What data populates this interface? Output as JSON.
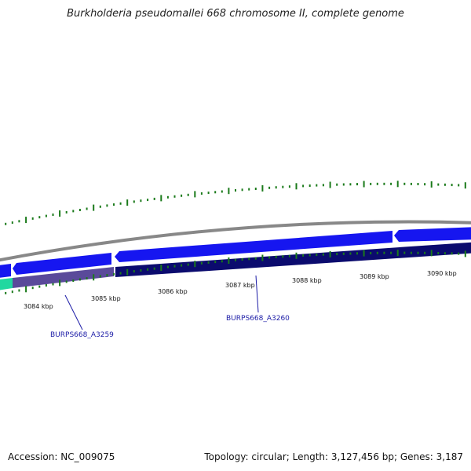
{
  "title": "Burkholderia pseudomallei 668 chromosome II, complete genome",
  "footer": {
    "accession": "Accession: NC_009075",
    "summary": "Topology: circular; Length: 3,127,456 bp; Genes: 3,187"
  },
  "colors": {
    "background": "#ffffff",
    "backbone": "#888888",
    "forward_gene": "#1616f0",
    "reverse_gene_a": "#5a4a9a",
    "reverse_gene_b": "#0b0b6e",
    "start_gene": "#20d8a0",
    "tick": "#1a7a1a",
    "label": "#1a1aa6"
  },
  "scale": {
    "unit": "kbp",
    "ticks": [
      "3084 kbp",
      "3085 kbp",
      "3086 kbp",
      "3087 kbp",
      "3088 kbp",
      "3089 kbp",
      "3090 kbp"
    ]
  },
  "genes": [
    {
      "name": "BURPS668_A3259"
    },
    {
      "name": "BURPS668_A3260"
    }
  ]
}
